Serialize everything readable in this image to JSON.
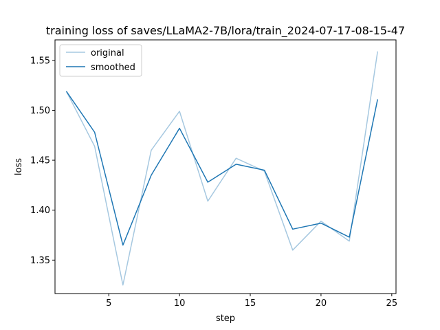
{
  "chart_data": {
    "type": "line",
    "title": "training loss of saves/LLaMA2-7B/lora/train_2024-07-17-08-15-47",
    "xlabel": "step",
    "ylabel": "loss",
    "xlim": [
      1.2,
      25.3
    ],
    "ylim": [
      1.3165,
      1.5705
    ],
    "xticks": [
      5,
      10,
      15,
      20,
      25
    ],
    "yticks": [
      1.35,
      1.4,
      1.45,
      1.5,
      1.55
    ],
    "ytick_labels": [
      "1.35",
      "1.40",
      "1.45",
      "1.50",
      "1.55"
    ],
    "xtick_labels": [
      "5",
      "10",
      "15",
      "20",
      "25"
    ],
    "grid": false,
    "legend": "top-left",
    "x": [
      2,
      4,
      6,
      8,
      10,
      12,
      14,
      16,
      18,
      20,
      22,
      24
    ],
    "series": [
      {
        "name": "original",
        "color": "#a6c8e0",
        "values": [
          1.519,
          1.464,
          1.325,
          1.46,
          1.499,
          1.409,
          1.452,
          1.439,
          1.36,
          1.389,
          1.369,
          1.559
        ]
      },
      {
        "name": "smoothed",
        "color": "#1f77b4",
        "values": [
          1.519,
          1.478,
          1.365,
          1.435,
          1.482,
          1.428,
          1.446,
          1.44,
          1.381,
          1.387,
          1.373,
          1.511
        ]
      }
    ]
  }
}
